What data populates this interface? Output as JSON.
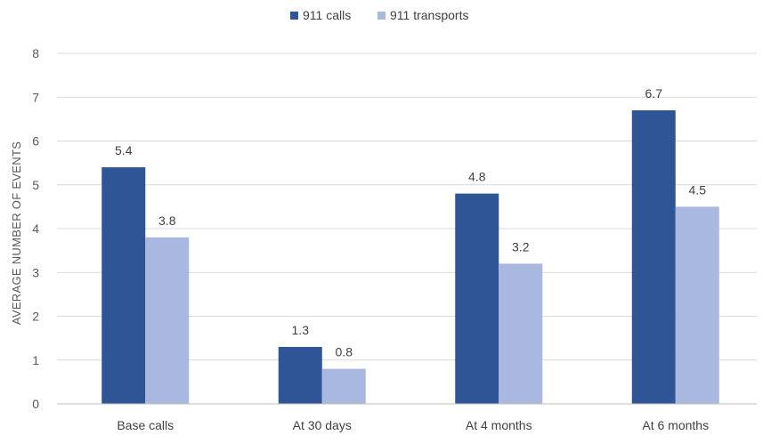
{
  "chart_data": {
    "type": "bar",
    "title": "",
    "xlabel": "",
    "ylabel": "AVERAGE NUMBER OF EVENTS",
    "ylim": [
      0,
      8
    ],
    "yticks": [
      0,
      1,
      2,
      3,
      4,
      5,
      6,
      7,
      8
    ],
    "grid": true,
    "legend_position": "top-center",
    "categories": [
      "Base calls",
      "At 30 days",
      "At 4 months",
      "At 6 months"
    ],
    "series": [
      {
        "name": "911 calls",
        "values": [
          5.4,
          1.3,
          4.8,
          6.7
        ],
        "labels": [
          "5.4",
          "1.3",
          "4.8",
          "6.7"
        ],
        "color": "#2f5597"
      },
      {
        "name": "911 transports",
        "values": [
          3.8,
          0.8,
          3.2,
          4.5
        ],
        "labels": [
          "3.8",
          "0.8",
          "3.2",
          "4.5"
        ],
        "color": "#a9b8df"
      }
    ]
  }
}
